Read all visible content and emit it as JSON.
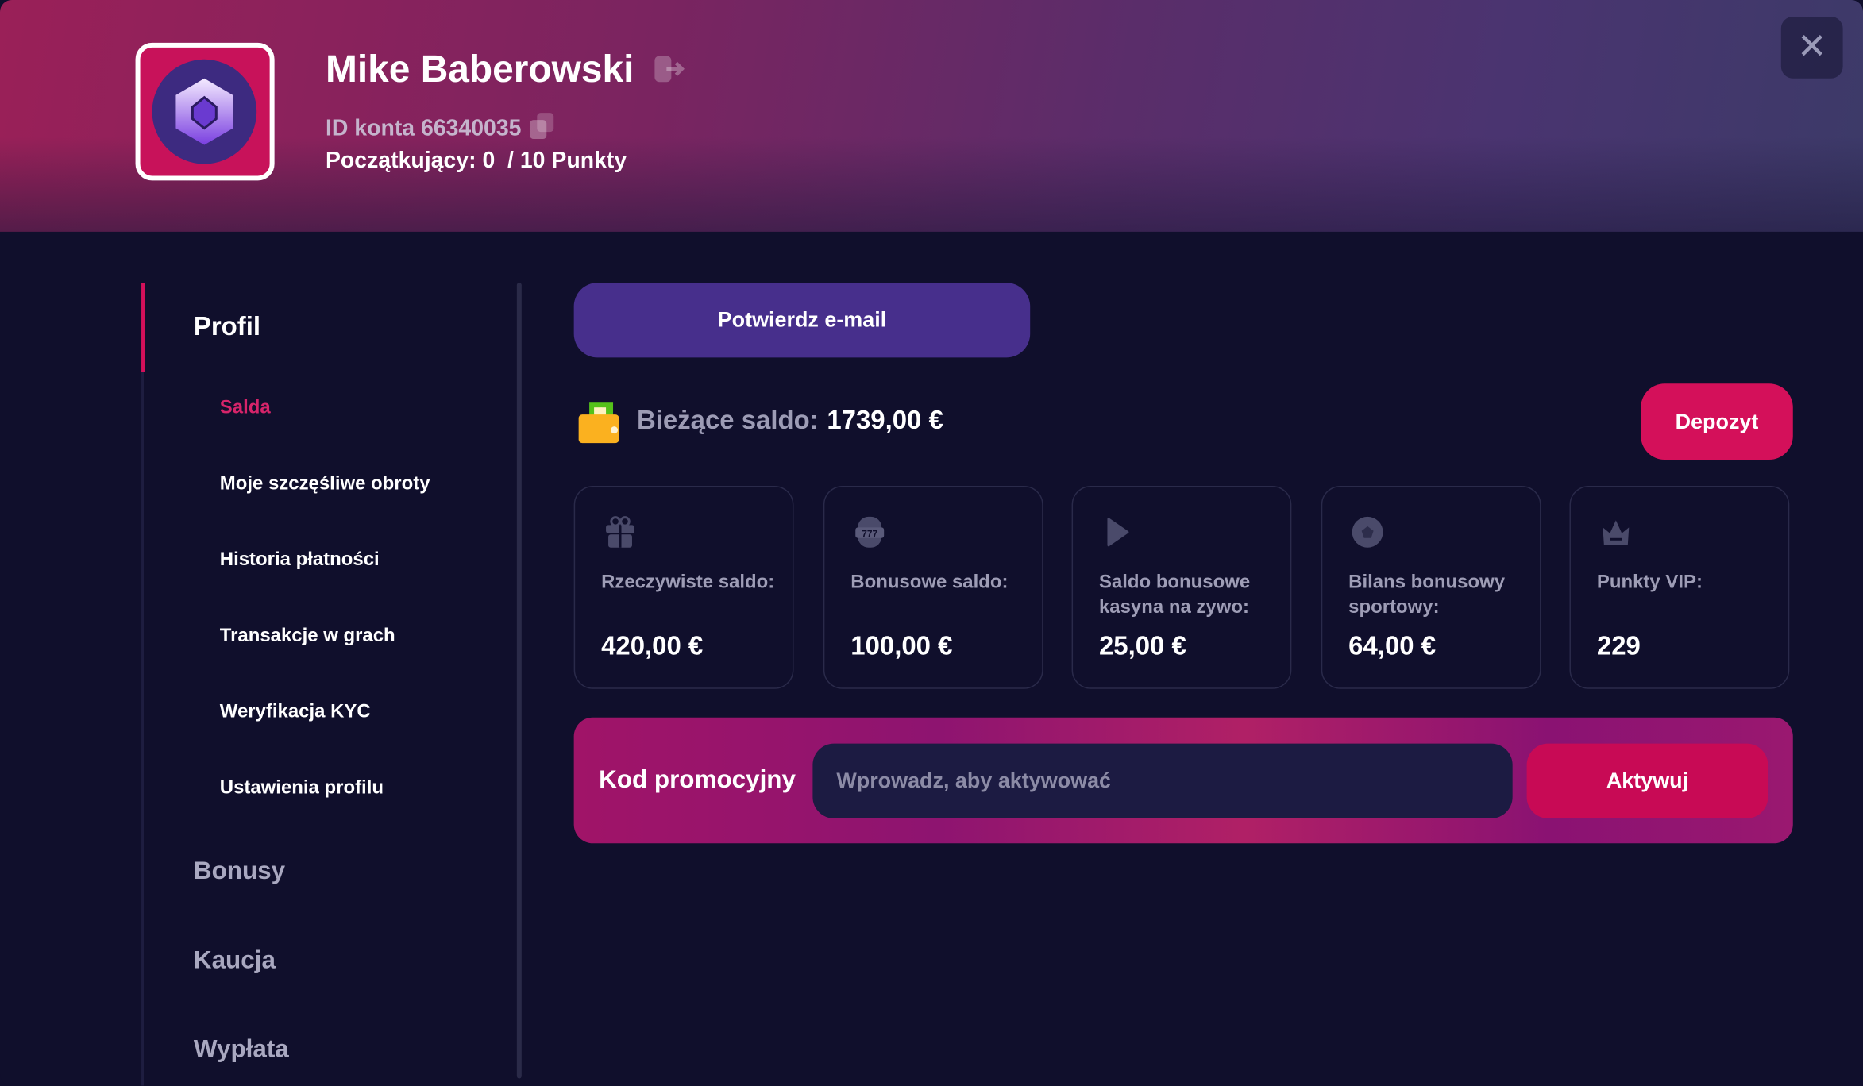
{
  "header": {
    "user_name": "Mike Baberowski",
    "account_id_label": "ID konta",
    "account_id": "66340035",
    "level_text": "Początkujący: 0  / 10 Punkty",
    "close_icon": "close-icon"
  },
  "sidebar": {
    "section": "Profil",
    "subitems": [
      {
        "label": "Salda",
        "active": true
      },
      {
        "label": "Moje szczęśliwe obroty"
      },
      {
        "label": "Historia płatności"
      },
      {
        "label": "Transakcje w grach"
      },
      {
        "label": "Weryfikacja KYC"
      },
      {
        "label": "Ustawienia profilu"
      }
    ],
    "sections": [
      "Bonusy",
      "Kaucja",
      "Wypłata"
    ]
  },
  "main": {
    "confirm_email": "Potwierdz e-mail",
    "balance_label": "Bieżące saldo:",
    "balance_value": "1739,00 €",
    "deposit": "Depozyt",
    "cards": [
      {
        "icon": "gift-icon",
        "label": "Rzeczywiste saldo:",
        "value": "420,00 €"
      },
      {
        "icon": "slot-machine-icon",
        "label": "Bonusowe saldo:",
        "value": "100,00 €"
      },
      {
        "icon": "play-icon",
        "label": "Saldo bonusowe kasyna na zywo:",
        "value": "25,00 €"
      },
      {
        "icon": "soccer-ball-icon",
        "label": "Bilans bonusowy sportowy:",
        "value": "64,00 €"
      },
      {
        "icon": "crown-icon",
        "label": "Punkty VIP:",
        "value": "229"
      }
    ],
    "promo": {
      "label": "Kod promocyjny",
      "placeholder": "Wprowadz, aby aktywować",
      "value": "",
      "button": "Aktywuj"
    }
  },
  "colors": {
    "accent": "#d4105a",
    "primary_button": "#472f8c",
    "background": "#100f2c"
  }
}
